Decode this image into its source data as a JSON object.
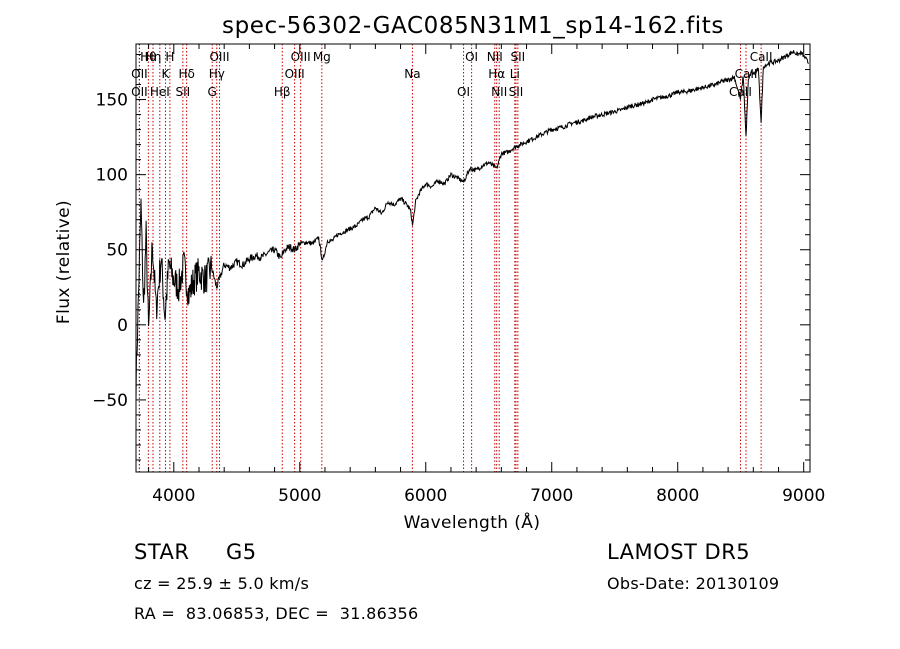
{
  "chart_data": {
    "type": "line",
    "title": "spec-56302-GAC085N31M1_sp14-162.fits",
    "xlabel": "Wavelength (Å)",
    "ylabel": "Flux (relative)",
    "xlim": [
      3700,
      9050
    ],
    "ylim": [
      -98,
      187
    ],
    "xticks": [
      4000,
      5000,
      6000,
      7000,
      8000,
      9000
    ],
    "yticks": [
      -50,
      0,
      50,
      100,
      150
    ],
    "grid": false,
    "line_color": "#000000",
    "marker_color": "#cc0000",
    "series": [
      {
        "x": [
          3700,
          3720,
          3740,
          3760,
          3780,
          3800,
          3830,
          3860,
          3900,
          3930,
          3960,
          4000,
          4040,
          4080,
          4120,
          4160,
          4200,
          4250,
          4300,
          4340,
          4400,
          4450,
          4500,
          4550,
          4600,
          4650,
          4700,
          4750,
          4800,
          4850,
          4880,
          4920,
          4960,
          5000,
          5050,
          5100,
          5150,
          5180,
          5220,
          5260,
          5300,
          5350,
          5400,
          5450,
          5500,
          5550,
          5600,
          5650,
          5700,
          5750,
          5800,
          5850,
          5880,
          5895,
          5920,
          5950,
          6000,
          6050,
          6100,
          6150,
          6200,
          6250,
          6300,
          6350,
          6400,
          6450,
          6500,
          6563,
          6600,
          6650,
          6700,
          6750,
          6800,
          6850,
          6900,
          6950,
          7000,
          7050,
          7100,
          7150,
          7200,
          7250,
          7300,
          7350,
          7400,
          7450,
          7500,
          7550,
          7600,
          7650,
          7700,
          7750,
          7800,
          7850,
          7900,
          7950,
          8000,
          8050,
          8100,
          8150,
          8200,
          8250,
          8300,
          8350,
          8400,
          8450,
          8498,
          8520,
          8542,
          8560,
          8580,
          8600,
          8640,
          8662,
          8680,
          8720,
          8760,
          8800,
          8840,
          8880,
          8920,
          8950,
          8980,
          9010,
          9040
        ],
        "y": [
          -40,
          20,
          80,
          10,
          60,
          -5,
          55,
          10,
          45,
          5,
          40,
          30,
          25,
          40,
          20,
          30,
          35,
          30,
          38,
          25,
          40,
          38,
          42,
          40,
          44,
          46,
          45,
          48,
          50,
          44,
          50,
          52,
          50,
          54,
          55,
          54,
          58,
          42,
          56,
          56,
          60,
          62,
          64,
          66,
          70,
          72,
          78,
          74,
          82,
          80,
          84,
          80,
          76,
          66,
          82,
          88,
          94,
          92,
          96,
          94,
          100,
          98,
          95,
          104,
          103,
          106,
          108,
          104,
          114,
          115,
          118,
          120,
          122,
          124,
          126,
          128,
          130,
          131,
          132,
          134,
          135,
          136,
          138,
          139,
          140,
          141,
          142,
          143,
          145,
          146,
          147,
          148,
          150,
          151,
          152,
          153,
          155,
          155,
          156,
          157,
          158,
          159,
          160,
          162,
          163,
          165,
          150,
          166,
          125,
          162,
          168,
          167,
          170,
          135,
          172,
          174,
          175,
          176,
          178,
          180,
          182,
          180,
          181,
          178,
          174
        ]
      }
    ],
    "lines": [
      {
        "label": "Hθ",
        "x": 3798
      },
      {
        "label": "OII",
        "x": 3727
      },
      {
        "label": "OII",
        "x": 3727
      },
      {
        "label": "Hη",
        "x": 3835
      },
      {
        "label": "K",
        "x": 3934
      },
      {
        "label": "HeI",
        "x": 3889
      },
      {
        "label": "H",
        "x": 3969
      },
      {
        "label": "Hδ",
        "x": 4102
      },
      {
        "label": "SII",
        "x": 4072
      },
      {
        "label": "OIII",
        "x": 4363
      },
      {
        "label": "Hγ",
        "x": 4341
      },
      {
        "label": "G",
        "x": 4305
      },
      {
        "label": "OIII",
        "x": 5007
      },
      {
        "label": "OIII",
        "x": 4959
      },
      {
        "label": "Hβ",
        "x": 4861
      },
      {
        "label": "Mg",
        "x": 5175
      },
      {
        "label": "Na",
        "x": 5894
      },
      {
        "label": "OI",
        "x": 6300
      },
      {
        "label": "OI",
        "x": 6364
      },
      {
        "label": "Hα",
        "x": 6563
      },
      {
        "label": "SII",
        "x": 6716
      },
      {
        "label": "NII",
        "x": 6548
      },
      {
        "label": "Li",
        "x": 6707
      },
      {
        "label": "NII",
        "x": 6583
      },
      {
        "label": "SII",
        "x": 6731
      },
      {
        "label": "CaII",
        "x": 8542
      },
      {
        "label": "CaII",
        "x": 8498
      },
      {
        "label": "CaII",
        "x": 8662
      }
    ]
  },
  "info": {
    "class_label": "STAR",
    "subclass": "G5",
    "survey": "LAMOST DR5",
    "cz_text": "cz = 25.9 ± 5.0 km/s",
    "obs_date_text": "Obs-Date: 20130109",
    "coords_text": "RA =  83.06853, DEC =  31.86356"
  }
}
